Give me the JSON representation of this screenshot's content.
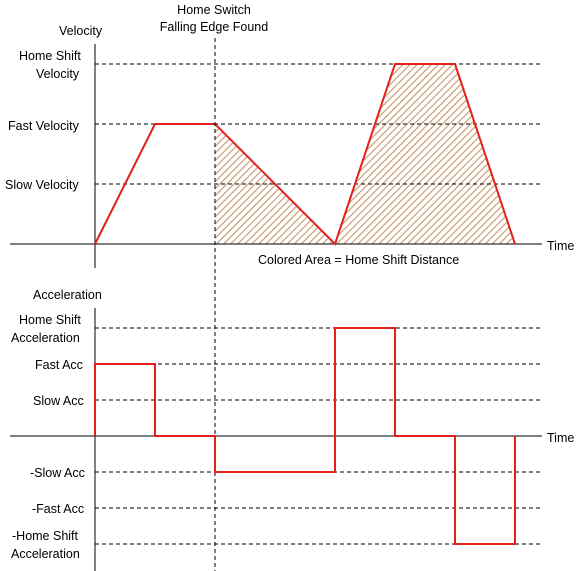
{
  "colors": {
    "profile": "#e3201b",
    "hatch": "#c8956a",
    "axis": "#000000",
    "dashed": "#000000",
    "background": "#ffffff"
  },
  "annotations": {
    "home_switch_line1": "Home Switch",
    "home_switch_line2": "Falling Edge Found",
    "colored_area_note": "Colored Area = Home Shift Distance"
  },
  "velocity_chart": {
    "y_axis_title": "Velocity",
    "x_axis_title": "Time",
    "levels": {
      "home_shift_line1": "Home Shift",
      "home_shift_line2": "Velocity",
      "fast": "Fast Velocity",
      "slow": "Slow Velocity"
    }
  },
  "acceleration_chart": {
    "y_axis_title": "Acceleration",
    "x_axis_title": "Time",
    "levels": {
      "home_shift_line1": "Home Shift",
      "home_shift_line2": "Acceleration",
      "fast": "Fast Acc",
      "slow": "Slow Acc",
      "neg_slow": "-Slow Acc",
      "neg_fast": "-Fast Acc",
      "neg_home_shift_line1": "-Home Shift",
      "neg_home_shift_line2": "Acceleration"
    }
  },
  "chart_data": [
    {
      "type": "line",
      "title": "",
      "ylabel": "Velocity",
      "xlabel": "Time",
      "y_levels": {
        "slow": 1,
        "fast": 2,
        "home_shift": 3
      },
      "x_unit": "time steps",
      "series": [
        {
          "points": [
            [
              0,
              0
            ],
            [
              1,
              2
            ],
            [
              2,
              2
            ],
            [
              4,
              0
            ],
            [
              5,
              3
            ],
            [
              6,
              3
            ],
            [
              7,
              0
            ]
          ]
        }
      ],
      "shaded_regions": [
        {
          "label": "Colored Area = Home Shift Distance",
          "x_range": [
            2,
            7
          ]
        }
      ],
      "markers": [
        {
          "x": 2,
          "label": "Home Switch Falling Edge Found"
        }
      ]
    },
    {
      "type": "line",
      "title": "",
      "ylabel": "Acceleration",
      "xlabel": "Time",
      "y_levels": {
        "neg_home_shift": -3,
        "neg_fast": -2,
        "neg_slow": -1,
        "slow": 1,
        "fast": 2,
        "home_shift": 3
      },
      "x_unit": "time steps",
      "series": [
        {
          "step_points": [
            [
              0,
              2
            ],
            [
              1,
              0
            ],
            [
              2,
              -1
            ],
            [
              4,
              3
            ],
            [
              5,
              0
            ],
            [
              6,
              -3
            ],
            [
              7,
              0
            ]
          ]
        }
      ]
    }
  ]
}
